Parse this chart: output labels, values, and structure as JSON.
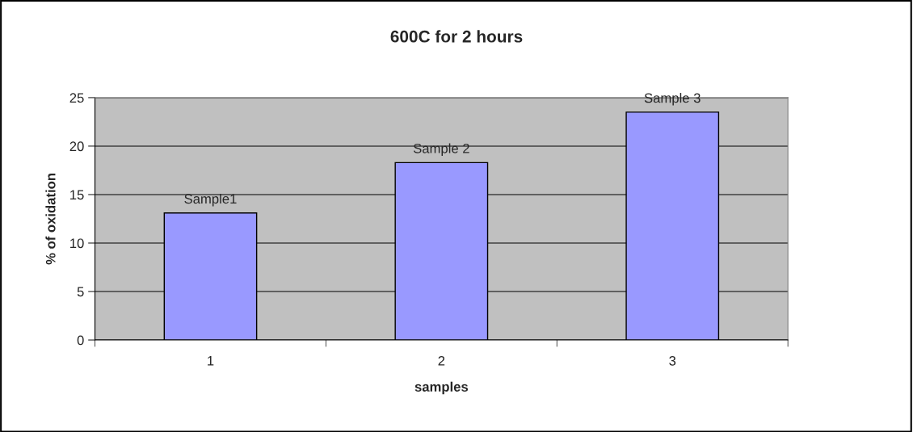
{
  "chart_data": {
    "type": "bar",
    "title": "600C for 2 hours",
    "xlabel": "samples",
    "ylabel": "% of oxidation",
    "categories": [
      "1",
      "2",
      "3"
    ],
    "values": [
      13.1,
      18.3,
      23.5
    ],
    "color": "#9999ff",
    "ylim": [
      0,
      25
    ],
    "yticks": [
      0,
      5,
      10,
      15,
      20,
      25
    ],
    "grid": "y",
    "annotations": [
      {
        "text": "Sample1",
        "x": "1",
        "y": 13.1
      },
      {
        "text": "Sample 2",
        "x": "2",
        "y": 18.3
      },
      {
        "text": "Sample 3",
        "x": "3",
        "y": 23.5
      }
    ]
  }
}
